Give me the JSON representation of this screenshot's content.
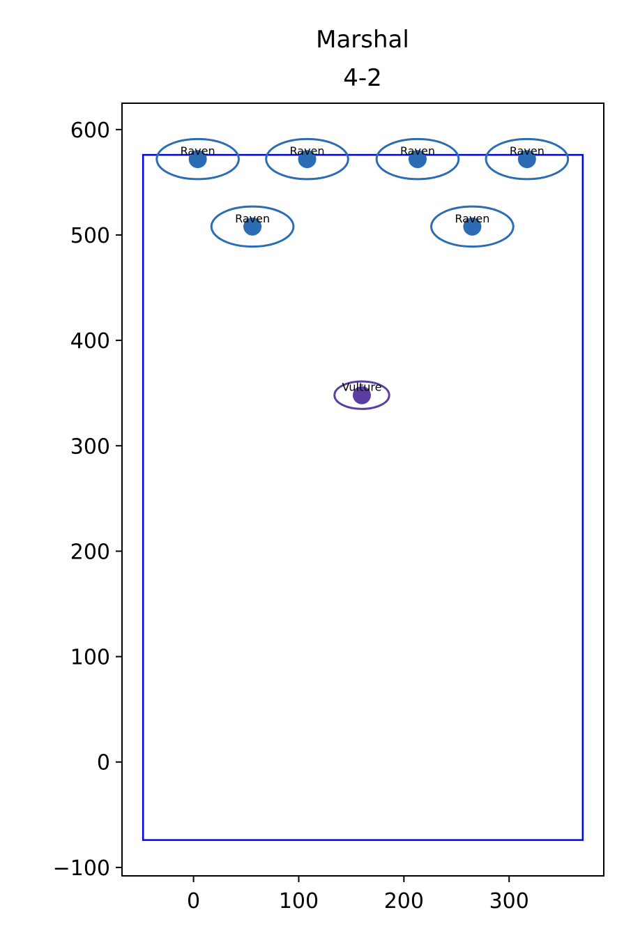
{
  "chart_data": {
    "type": "scatter",
    "title_lines": [
      "Marshal",
      "4-2"
    ],
    "xlabel": "",
    "ylabel": "",
    "xlim": [
      -68,
      390
    ],
    "ylim": [
      -108,
      625
    ],
    "x_ticks": [
      0,
      100,
      200,
      300
    ],
    "y_ticks": [
      -100,
      0,
      100,
      200,
      300,
      400,
      500,
      600
    ],
    "x_tick_labels": [
      "0",
      "100",
      "200",
      "300"
    ],
    "y_tick_labels": [
      "−100",
      "0",
      "100",
      "200",
      "300",
      "400",
      "500",
      "600"
    ],
    "grid": false,
    "boundary": {
      "x0": -48,
      "x1": 370,
      "y0": -74,
      "y1": 576,
      "color": "#0000ff"
    },
    "points": [
      {
        "label": "Raven",
        "x": 4,
        "y": 572,
        "rx": 39,
        "ry": 19,
        "color": "#2b6cb4"
      },
      {
        "label": "Raven",
        "x": 108,
        "y": 572,
        "rx": 39,
        "ry": 19,
        "color": "#2b6cb4"
      },
      {
        "label": "Raven",
        "x": 213,
        "y": 572,
        "rx": 39,
        "ry": 19,
        "color": "#2b6cb4"
      },
      {
        "label": "Raven",
        "x": 317,
        "y": 572,
        "rx": 39,
        "ry": 19,
        "color": "#2b6cb4"
      },
      {
        "label": "Raven",
        "x": 56,
        "y": 508,
        "rx": 39,
        "ry": 19,
        "color": "#2b6cb4"
      },
      {
        "label": "Raven",
        "x": 265,
        "y": 508,
        "rx": 39,
        "ry": 19,
        "color": "#2b6cb4"
      },
      {
        "label": "Vulture",
        "x": 160,
        "y": 348,
        "rx": 26,
        "ry": 13,
        "color": "#5b3fa0"
      }
    ]
  }
}
